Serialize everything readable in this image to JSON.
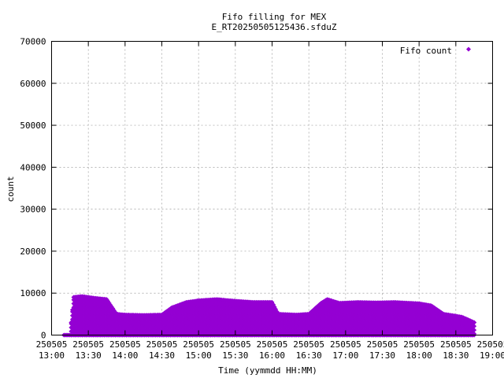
{
  "chart_data": {
    "type": "scatter",
    "title": "Fifo filling for MEX",
    "subtitle": "E_RT20250505125436.sfduZ",
    "xlabel": "Time (yymmdd HH:MM)",
    "ylabel": "count",
    "grid": true,
    "legend_placement": "top-right",
    "xlim": [
      "2025-05-05 13:00",
      "2025-05-05 19:00"
    ],
    "ylim": [
      0,
      70000
    ],
    "x_ticks": [
      {
        "date": "250505",
        "time": "13:00"
      },
      {
        "date": "250505",
        "time": "13:30"
      },
      {
        "date": "250505",
        "time": "14:00"
      },
      {
        "date": "250505",
        "time": "14:30"
      },
      {
        "date": "250505",
        "time": "15:00"
      },
      {
        "date": "250505",
        "time": "15:30"
      },
      {
        "date": "250505",
        "time": "16:00"
      },
      {
        "date": "250505",
        "time": "16:30"
      },
      {
        "date": "250505",
        "time": "17:00"
      },
      {
        "date": "250505",
        "time": "17:30"
      },
      {
        "date": "250505",
        "time": "18:00"
      },
      {
        "date": "250505",
        "time": "18:30"
      },
      {
        "date": "250505",
        "time": "19:00"
      }
    ],
    "y_ticks": [
      "0",
      "10000",
      "20000",
      "30000",
      "40000",
      "50000",
      "60000",
      "70000"
    ],
    "series": [
      {
        "name": "Fifo count",
        "color": "#9400d3",
        "marker": "diamond",
        "envelope": [
          [
            "2025-05-05 13:10",
            0
          ],
          [
            "2025-05-05 13:15",
            0
          ],
          [
            "2025-05-05 13:18",
            9000
          ],
          [
            "2025-05-05 13:25",
            9200
          ],
          [
            "2025-05-05 13:35",
            8800
          ],
          [
            "2025-05-05 13:45",
            8500
          ],
          [
            "2025-05-05 13:53",
            5000
          ],
          [
            "2025-05-05 14:00",
            4800
          ],
          [
            "2025-05-05 14:15",
            4700
          ],
          [
            "2025-05-05 14:30",
            4800
          ],
          [
            "2025-05-05 14:38",
            6500
          ],
          [
            "2025-05-05 14:50",
            7800
          ],
          [
            "2025-05-05 15:00",
            8200
          ],
          [
            "2025-05-05 15:15",
            8500
          ],
          [
            "2025-05-05 15:25",
            8200
          ],
          [
            "2025-05-05 15:35",
            8000
          ],
          [
            "2025-05-05 15:45",
            7800
          ],
          [
            "2025-05-05 16:00",
            7800
          ],
          [
            "2025-05-05 16:05",
            5000
          ],
          [
            "2025-05-05 16:20",
            4800
          ],
          [
            "2025-05-05 16:30",
            5000
          ],
          [
            "2025-05-05 16:40",
            7600
          ],
          [
            "2025-05-05 16:45",
            8500
          ],
          [
            "2025-05-05 16:55",
            7600
          ],
          [
            "2025-05-05 17:10",
            7800
          ],
          [
            "2025-05-05 17:25",
            7700
          ],
          [
            "2025-05-05 17:40",
            7800
          ],
          [
            "2025-05-05 18:00",
            7500
          ],
          [
            "2025-05-05 18:10",
            7000
          ],
          [
            "2025-05-05 18:20",
            5000
          ],
          [
            "2025-05-05 18:35",
            4300
          ],
          [
            "2025-05-05 18:45",
            3000
          ]
        ]
      }
    ]
  }
}
